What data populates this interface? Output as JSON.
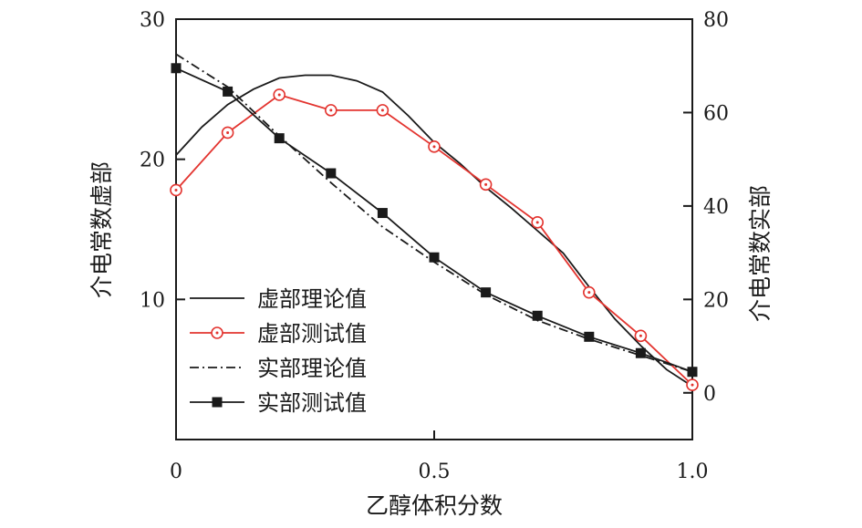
{
  "chart_data": {
    "type": "line",
    "xlabel": "乙醇体积分数",
    "ylabel_left": "介电常数虚部",
    "ylabel_right": "介电常数实部",
    "xlim": [
      0,
      1.0
    ],
    "ylim_left": [
      0,
      30
    ],
    "ylim_right": [
      -10,
      80
    ],
    "x_ticks": [
      {
        "value": 0,
        "label": "0"
      },
      {
        "value": 0.5,
        "label": "0.5"
      },
      {
        "value": 1.0,
        "label": "1.0"
      }
    ],
    "y_left_ticks": [
      {
        "value": 10,
        "label": "10"
      },
      {
        "value": 20,
        "label": "20"
      },
      {
        "value": 30,
        "label": "30"
      }
    ],
    "y_right_ticks": [
      {
        "value": 0,
        "label": "0"
      },
      {
        "value": 20,
        "label": "20"
      },
      {
        "value": 40,
        "label": "40"
      },
      {
        "value": 60,
        "label": "60"
      },
      {
        "value": 80,
        "label": "80"
      }
    ],
    "grid": false,
    "legend_position": "lower-left",
    "series": [
      {
        "name": "虚部理论值",
        "axis": "left",
        "style": "solid",
        "marker": "none",
        "color": "#1a1a1a",
        "x": [
          0,
          0.05,
          0.1,
          0.15,
          0.2,
          0.25,
          0.3,
          0.35,
          0.4,
          0.45,
          0.5,
          0.55,
          0.6,
          0.65,
          0.7,
          0.75,
          0.8,
          0.85,
          0.9,
          0.95,
          1.0
        ],
        "y": [
          20.3,
          22.3,
          23.9,
          25.0,
          25.8,
          26.0,
          26.0,
          25.6,
          24.8,
          23.1,
          21.2,
          19.7,
          18.0,
          16.5,
          14.9,
          13.3,
          10.9,
          8.6,
          6.7,
          5.0,
          3.8
        ]
      },
      {
        "name": "虚部测试值",
        "axis": "left",
        "style": "solid",
        "marker": "circle",
        "color": "#e3342f",
        "x": [
          0,
          0.1,
          0.2,
          0.3,
          0.4,
          0.5,
          0.6,
          0.7,
          0.8,
          0.9,
          1.0
        ],
        "y": [
          17.8,
          21.9,
          24.6,
          23.5,
          23.5,
          20.9,
          18.2,
          15.5,
          10.5,
          7.4,
          3.9
        ]
      },
      {
        "name": "实部理论值",
        "axis": "right",
        "style": "dash-dot",
        "marker": "none",
        "color": "#1a1a1a",
        "x": [
          0,
          0.1,
          0.2,
          0.3,
          0.4,
          0.5,
          0.6,
          0.7,
          0.8,
          0.9,
          1.0
        ],
        "y": [
          72.5,
          65.5,
          55.0,
          45.0,
          35.5,
          28.0,
          21.0,
          15.5,
          11.5,
          8.0,
          4.5
        ]
      },
      {
        "name": "实部测试值",
        "axis": "right",
        "style": "solid",
        "marker": "square",
        "color": "#1a1a1a",
        "x": [
          0,
          0.1,
          0.2,
          0.3,
          0.4,
          0.5,
          0.6,
          0.7,
          0.8,
          0.9,
          1.0
        ],
        "y": [
          69.5,
          64.5,
          54.5,
          47.0,
          38.5,
          29.0,
          21.5,
          16.5,
          12.0,
          8.5,
          4.5
        ]
      }
    ]
  }
}
